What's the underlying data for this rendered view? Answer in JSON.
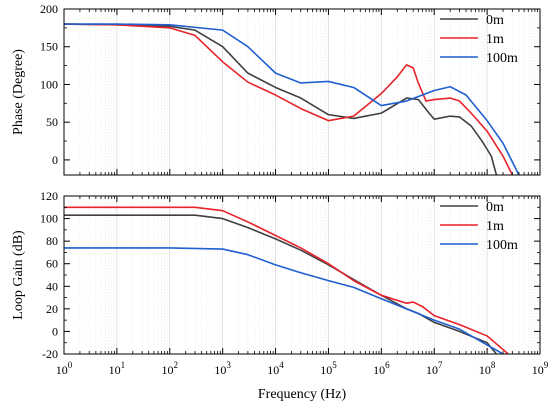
{
  "chart_data": {
    "x_label": "Frequency (Hz)",
    "x_scale": "log",
    "x_range": [
      1,
      1000000000
    ],
    "x_ticks": [
      {
        "value": 1,
        "base": "10",
        "exp": "0"
      },
      {
        "value": 10,
        "base": "10",
        "exp": "1"
      },
      {
        "value": 100,
        "base": "10",
        "exp": "2"
      },
      {
        "value": 1000,
        "base": "10",
        "exp": "3"
      },
      {
        "value": 10000,
        "base": "10",
        "exp": "4"
      },
      {
        "value": 100000,
        "base": "10",
        "exp": "5"
      },
      {
        "value": 1000000,
        "base": "10",
        "exp": "6"
      },
      {
        "value": 10000000,
        "base": "10",
        "exp": "7"
      },
      {
        "value": 100000000,
        "base": "10",
        "exp": "8"
      },
      {
        "value": 1000000000,
        "base": "10",
        "exp": "9"
      }
    ],
    "charts": [
      {
        "id": "phase",
        "type": "line",
        "ylabel": "Phase (Degree)",
        "ylim": [
          -20,
          200
        ],
        "y_ticks": [
          "0",
          "50",
          "100",
          "150",
          "200"
        ],
        "y_tick_values": [
          0,
          50,
          100,
          150,
          200
        ],
        "legend_position": "top-right",
        "series": [
          {
            "name": "0m",
            "color": "#404040",
            "x": [
              1,
              10,
              100,
              300,
              1000,
              3000,
              10000,
              30000,
              100000,
              300000,
              1000000,
              3000000,
              5000000,
              8000000,
              10000000,
              20000000,
              30000000,
              50000000,
              80000000,
              120000000,
              150000000
            ],
            "y": [
              180,
              179,
              177,
              172,
              150,
              115,
              96,
              82,
              60,
              55,
              62,
              82,
              80,
              62,
              54,
              58,
              57,
              45,
              25,
              5,
              -20
            ]
          },
          {
            "name": "1m",
            "color": "#e8232a",
            "x": [
              1,
              10,
              100,
              300,
              1000,
              3000,
              10000,
              30000,
              100000,
              300000,
              1000000,
              2000000,
              3000000,
              4000000,
              5000000,
              7000000,
              10000000,
              20000000,
              30000000,
              50000000,
              100000000,
              200000000,
              300000000
            ],
            "y": [
              180,
              179,
              175,
              165,
              130,
              103,
              86,
              68,
              52,
              58,
              88,
              110,
              126,
              122,
              102,
              78,
              80,
              82,
              78,
              62,
              38,
              5,
              -20
            ]
          },
          {
            "name": "100m",
            "color": "#1f5fd0",
            "x": [
              1,
              10,
              100,
              1000,
              3000,
              10000,
              30000,
              100000,
              300000,
              1000000,
              3000000,
              10000000,
              20000000,
              40000000,
              100000000,
              200000000,
              400000000
            ],
            "y": [
              180,
              180,
              179,
              172,
              150,
              115,
              102,
              104,
              96,
              72,
              78,
              92,
              97,
              86,
              52,
              22,
              -20
            ]
          }
        ]
      },
      {
        "id": "gain",
        "type": "line",
        "ylabel": "Loop Gain (dB)",
        "ylim": [
          -20,
          120
        ],
        "y_ticks": [
          "-20",
          "0",
          "20",
          "40",
          "60",
          "80",
          "100",
          "120"
        ],
        "y_tick_values": [
          -20,
          0,
          20,
          40,
          60,
          80,
          100,
          120
        ],
        "legend_position": "top-right",
        "series": [
          {
            "name": "0m",
            "color": "#404040",
            "x": [
              1,
              10,
              100,
              300,
              1000,
              3000,
              10000,
              30000,
              100000,
              300000,
              1000000,
              3000000,
              5000000,
              10000000,
              30000000,
              100000000,
              150000000
            ],
            "y": [
              103,
              103,
              103,
              103,
              100,
              92,
              82,
              72,
              59,
              46,
              32,
              20,
              16,
              8,
              0,
              -10,
              -20
            ]
          },
          {
            "name": "1m",
            "color": "#e8232a",
            "x": [
              1,
              10,
              100,
              300,
              1000,
              3000,
              10000,
              30000,
              100000,
              300000,
              1000000,
              3000000,
              4000000,
              6000000,
              10000000,
              30000000,
              100000000,
              200000000,
              250000000
            ],
            "y": [
              110,
              110,
              110,
              110,
              107,
              97,
              85,
              74,
              60,
              45,
              32,
              25,
              26,
              22,
              14,
              6,
              -4,
              -16,
              -20
            ]
          },
          {
            "name": "100m",
            "color": "#1f5fd0",
            "x": [
              1,
              10,
              100,
              1000,
              3000,
              10000,
              30000,
              100000,
              300000,
              1000000,
              3000000,
              10000000,
              30000000,
              100000000,
              200000000
            ],
            "y": [
              74,
              74,
              74,
              73,
              68,
              59,
              52,
              45,
              39,
              29,
              20,
              10,
              2,
              -12,
              -20
            ]
          }
        ]
      }
    ]
  }
}
